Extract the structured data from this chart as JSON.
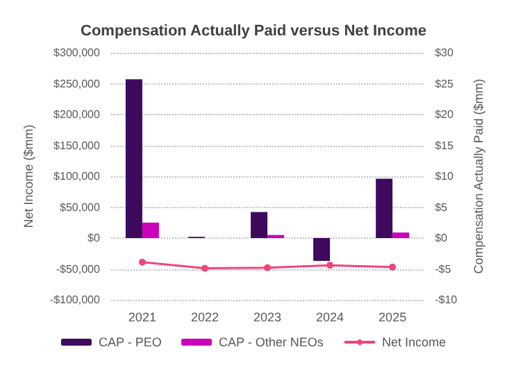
{
  "chart_data": {
    "type": "bar",
    "title": "Compensation Actually Paid versus Net Income",
    "ylabel": "Net Income ($mm)",
    "y2label": "Compensation Actually Paid ($mm)",
    "categories": [
      "2021",
      "2022",
      "2023",
      "2024",
      "2025"
    ],
    "series": [
      {
        "name": "CAP - PEO",
        "color": "#3d0a5e",
        "values": [
          257000,
          2000,
          42000,
          -37000,
          96000
        ]
      },
      {
        "name": "CAP - Other NEOs",
        "color": "#cc00bb",
        "values": [
          25000,
          null,
          5000,
          null,
          9000
        ]
      },
      {
        "name": "Net Income",
        "type": "line",
        "axis": "y2",
        "color": "#f0457a",
        "values": [
          -3.9,
          -4.9,
          -4.8,
          -4.4,
          -4.7
        ]
      }
    ],
    "ylim": [
      -100000,
      300000
    ],
    "yticks": [
      {
        "value": -100000,
        "label": "-$100,000"
      },
      {
        "value": -50000,
        "label": "-$50,000"
      },
      {
        "value": 0,
        "label": "$0"
      },
      {
        "value": 50000,
        "label": "$50,000"
      },
      {
        "value": 100000,
        "label": "$100,000"
      },
      {
        "value": 150000,
        "label": "$150,000"
      },
      {
        "value": 200000,
        "label": "$200,000"
      },
      {
        "value": 250000,
        "label": "$250,000"
      },
      {
        "value": 300000,
        "label": "$300,000"
      }
    ],
    "y2lim": [
      -10,
      30
    ],
    "y2ticks": [
      {
        "value": -10,
        "label": "-$10"
      },
      {
        "value": -5,
        "label": "-$5"
      },
      {
        "value": 0,
        "label": "$0"
      },
      {
        "value": 5,
        "label": "$5"
      },
      {
        "value": 10,
        "label": "$10"
      },
      {
        "value": 15,
        "label": "$15"
      },
      {
        "value": 20,
        "label": "$20"
      },
      {
        "value": 25,
        "label": "$25"
      },
      {
        "value": 30,
        "label": "$30"
      }
    ],
    "grid": "y",
    "legend": "bottom",
    "marker": "circle"
  }
}
